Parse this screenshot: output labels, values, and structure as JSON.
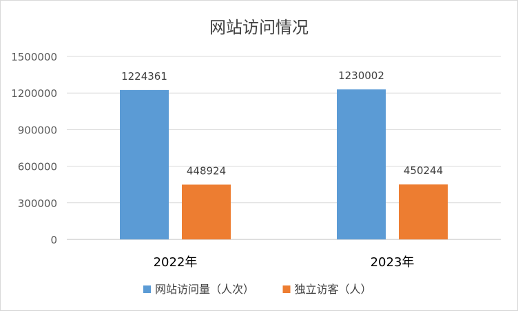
{
  "chart_data": {
    "type": "bar",
    "title": "网站访问情况",
    "categories": [
      "2022年",
      "2023年"
    ],
    "series": [
      {
        "name": "网站访问量（人次）",
        "values": [
          1224361,
          1230002
        ],
        "color": "#5b9bd5"
      },
      {
        "name": "独立访客（人）",
        "values": [
          448924,
          450244
        ],
        "color": "#ed7d31"
      }
    ],
    "y_ticks": [
      "0",
      "300000",
      "600000",
      "900000",
      "1200000",
      "1500000"
    ],
    "ylim": [
      0,
      1500000
    ],
    "grid": true,
    "legend_position": "bottom",
    "data_labels": true
  }
}
